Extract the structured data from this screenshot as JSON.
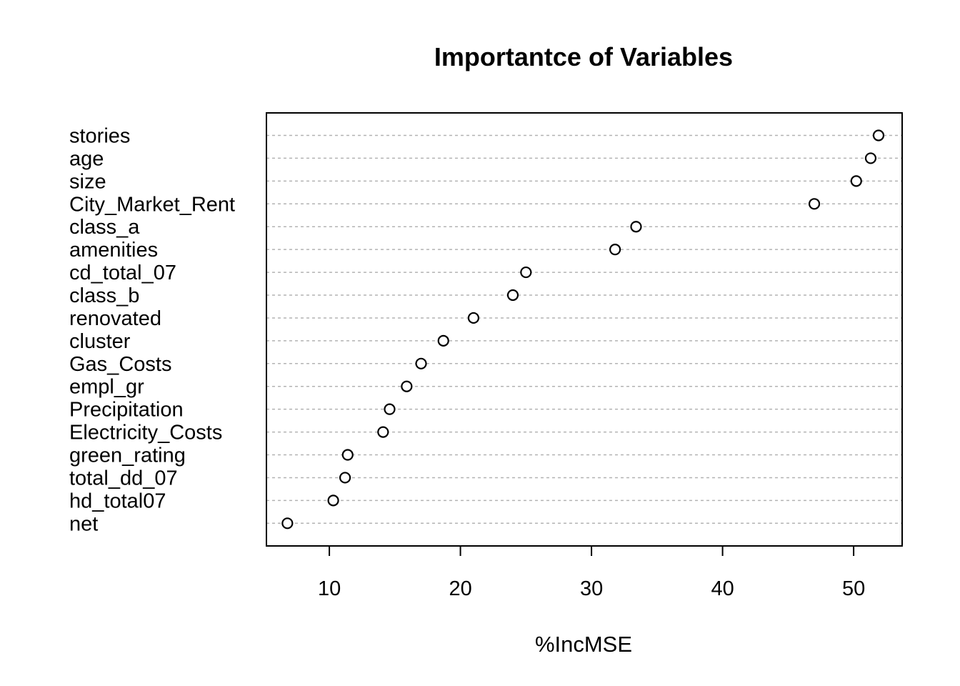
{
  "chart_data": {
    "type": "scatter",
    "title": "Importantce of Variables",
    "xlabel": "%IncMSE",
    "ylabel": "",
    "xlim": [
      5.2,
      53.7
    ],
    "xticks": [
      10,
      20,
      30,
      40,
      50
    ],
    "grid": "horizontal dotted lines at each category",
    "legend": "none",
    "categories": [
      "stories",
      "age",
      "size",
      "City_Market_Rent",
      "class_a",
      "amenities",
      "cd_total_07",
      "class_b",
      "renovated",
      "cluster",
      "Gas_Costs",
      "empl_gr",
      "Precipitation",
      "Electricity_Costs",
      "green_rating",
      "total_dd_07",
      "hd_total07",
      "net"
    ],
    "values": [
      51.9,
      51.3,
      50.2,
      47.0,
      33.4,
      31.8,
      25.0,
      24.0,
      21.0,
      18.7,
      17.0,
      15.9,
      14.6,
      14.1,
      11.4,
      11.2,
      10.3,
      6.8
    ]
  }
}
